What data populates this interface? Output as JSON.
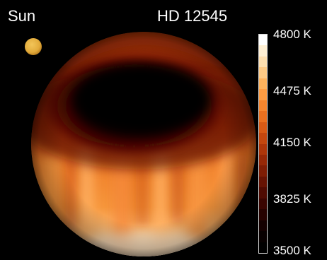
{
  "labels": {
    "reference": "Sun",
    "target": "HD 12545"
  },
  "colorbar": {
    "ticks": [
      "4800 K",
      "4475 K",
      "4150 K",
      "3825 K",
      "3500 K"
    ],
    "colors_top_to_bottom": [
      "#ffffff",
      "#fff0d4",
      "#ffe0b0",
      "#ffcb86",
      "#ffb35d",
      "#ff9d43",
      "#f7862e",
      "#ea701f",
      "#d85a15",
      "#c4470e",
      "#ae3609",
      "#962806",
      "#7e1d04",
      "#661303",
      "#4f0b02",
      "#3a0501",
      "#260200",
      "#140000",
      "#080000",
      "#000000"
    ]
  },
  "scene": {
    "sun_color": "#e2aa3a",
    "star_surface": [
      "#ffd7a8",
      "#f38b32",
      "#e2661b",
      "#c9410b",
      "#7a1303",
      "#2b0200"
    ]
  }
}
